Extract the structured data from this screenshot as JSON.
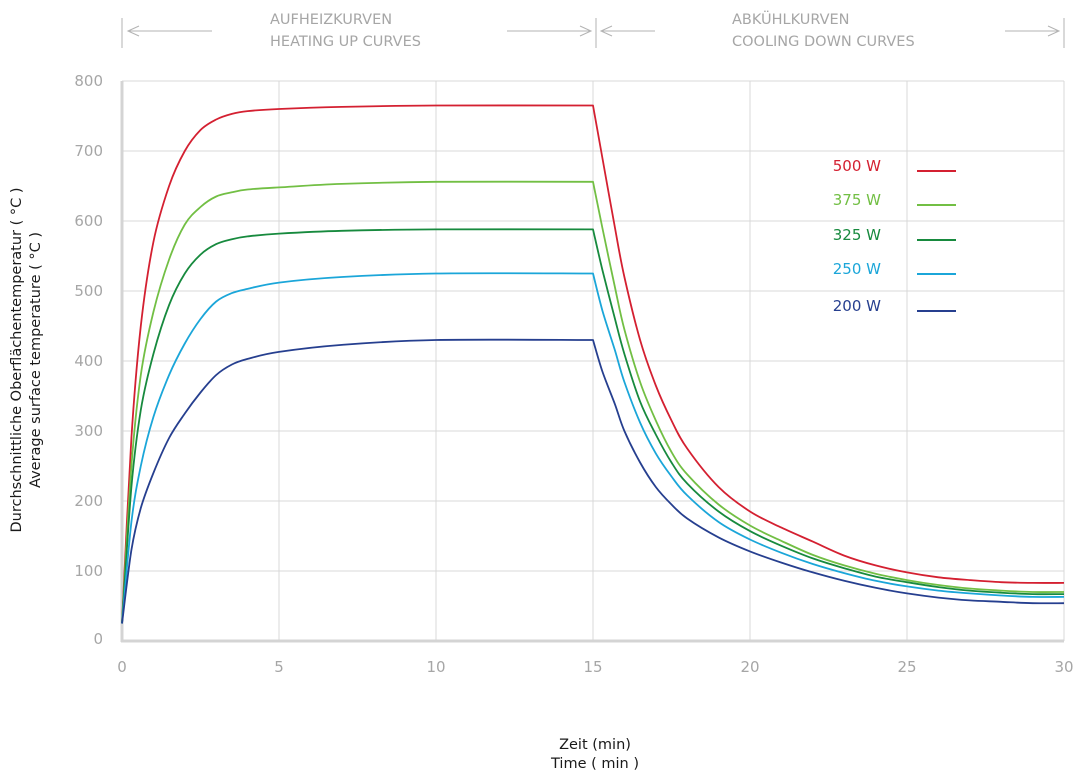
{
  "chart_data": {
    "type": "line",
    "xlabel_line1": "Zeit (min)",
    "xlabel_line2": "Time ( min )",
    "ylabel_line1": "Durchschnittliche Oberflächentemperatur ( °C )",
    "ylabel_line2": "Average surface temperature ( °C )",
    "xlim": [
      0,
      30
    ],
    "ylim": [
      0,
      800
    ],
    "x_ticks": [
      "0",
      "5",
      "10",
      "15",
      "20",
      "25",
      "30"
    ],
    "y_ticks": [
      "0",
      "100",
      "200",
      "300",
      "400",
      "500",
      "600",
      "700",
      "800"
    ],
    "grid": true,
    "legend_position": "top-right",
    "sections": [
      {
        "line1": "AUFHEIZKURVEN",
        "line2": "HEATING UP CURVES"
      },
      {
        "line1": "ABKÜHLKURVEN",
        "line2": "COOLING DOWN CURVES"
      }
    ],
    "series": [
      {
        "name": "500 W",
        "color": "#d42031",
        "x": [
          0,
          0.3,
          0.6,
          1,
          1.5,
          2,
          2.5,
          3,
          3.5,
          4,
          5,
          7,
          10,
          15,
          15.3,
          15.7,
          16,
          16.5,
          17,
          17.5,
          18,
          19,
          20,
          21,
          22,
          23,
          24,
          25,
          26,
          27,
          28,
          29,
          30
        ],
        "y": [
          25,
          290,
          450,
          570,
          650,
          700,
          730,
          745,
          753,
          757,
          760,
          763,
          765,
          765,
          690,
          590,
          520,
          430,
          365,
          315,
          275,
          220,
          185,
          162,
          142,
          122,
          108,
          98,
          91,
          87,
          84,
          83,
          83
        ]
      },
      {
        "name": "375 W",
        "color": "#72bf44",
        "x": [
          0,
          0.3,
          0.6,
          1,
          1.5,
          2,
          2.5,
          3,
          3.5,
          4,
          5,
          7,
          10,
          15,
          15.3,
          15.7,
          16,
          16.5,
          17,
          17.5,
          18,
          19,
          20,
          21,
          22,
          23,
          24,
          25,
          26,
          27,
          28,
          29,
          30
        ],
        "y": [
          25,
          250,
          380,
          470,
          545,
          595,
          620,
          635,
          641,
          645,
          648,
          653,
          656,
          656,
          590,
          505,
          445,
          370,
          315,
          270,
          238,
          195,
          165,
          143,
          123,
          108,
          96,
          87,
          80,
          75,
          72,
          70,
          70
        ]
      },
      {
        "name": "325 W",
        "color": "#178a3e",
        "x": [
          0,
          0.3,
          0.6,
          1,
          1.5,
          2,
          2.5,
          3,
          3.5,
          4,
          5,
          7,
          10,
          15,
          15.3,
          15.7,
          16,
          16.5,
          17,
          17.5,
          18,
          19,
          20,
          21,
          22,
          23,
          24,
          25,
          26,
          27,
          28,
          29,
          30
        ],
        "y": [
          25,
          220,
          330,
          410,
          480,
          525,
          552,
          567,
          574,
          578,
          582,
          586,
          588,
          588,
          530,
          460,
          410,
          342,
          295,
          255,
          225,
          185,
          157,
          136,
          118,
          104,
          92,
          84,
          77,
          72,
          69,
          67,
          67
        ]
      },
      {
        "name": "250 W",
        "color": "#1ba6d9",
        "x": [
          0,
          0.3,
          0.6,
          1,
          1.5,
          2,
          2.5,
          3,
          3.5,
          4,
          5,
          7,
          10,
          15,
          15.3,
          15.7,
          16,
          16.5,
          17,
          17.5,
          18,
          19,
          20,
          21,
          22,
          23,
          24,
          25,
          26,
          27,
          28,
          29,
          30
        ],
        "y": [
          25,
          170,
          250,
          320,
          380,
          425,
          460,
          485,
          497,
          503,
          512,
          520,
          525,
          525,
          472,
          415,
          370,
          312,
          268,
          235,
          208,
          170,
          145,
          126,
          110,
          97,
          86,
          78,
          72,
          68,
          65,
          63,
          63
        ]
      },
      {
        "name": "200  W",
        "color": "#263f8f",
        "x": [
          0,
          0.3,
          0.6,
          1,
          1.5,
          2,
          2.5,
          3,
          3.5,
          4,
          5,
          7,
          10,
          15,
          15.3,
          15.7,
          16,
          16.5,
          17,
          17.5,
          18,
          19,
          20,
          21,
          22,
          23,
          24,
          25,
          26,
          27,
          28,
          29,
          30
        ],
        "y": [
          25,
          130,
          190,
          240,
          290,
          325,
          355,
          380,
          395,
          403,
          413,
          423,
          430,
          430,
          385,
          338,
          300,
          255,
          220,
          195,
          175,
          148,
          128,
          112,
          98,
          86,
          76,
          68,
          62,
          58,
          56,
          54,
          54
        ]
      }
    ]
  }
}
